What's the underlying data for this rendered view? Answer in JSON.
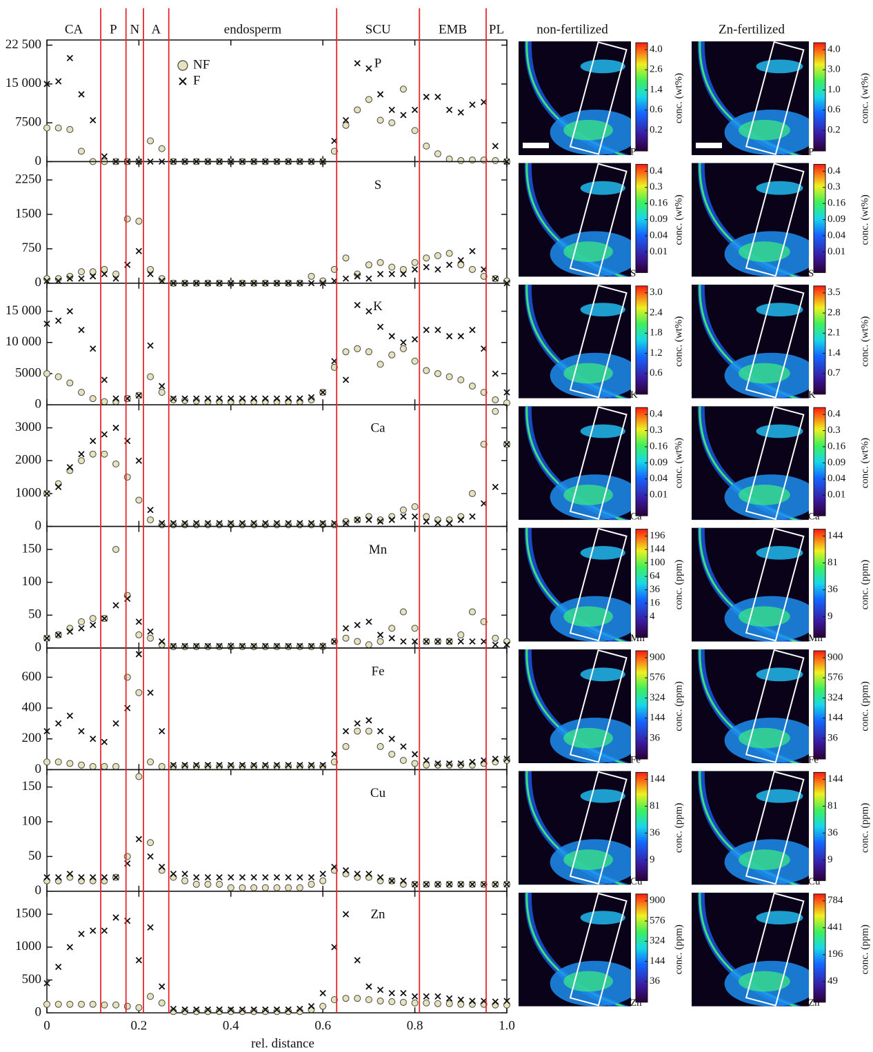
{
  "chart_data": {
    "type": "scatter",
    "xlabel": "rel. distance",
    "x": [
      0,
      0.025,
      0.05,
      0.075,
      0.1,
      0.125,
      0.15,
      0.175,
      0.2,
      0.225,
      0.25,
      0.275,
      0.3,
      0.325,
      0.35,
      0.375,
      0.4,
      0.425,
      0.45,
      0.475,
      0.5,
      0.525,
      0.55,
      0.575,
      0.6,
      0.625,
      0.65,
      0.675,
      0.7,
      0.725,
      0.75,
      0.775,
      0.8,
      0.825,
      0.85,
      0.875,
      0.9,
      0.925,
      0.95,
      0.975,
      1
    ],
    "xlim": [
      0,
      1
    ],
    "xticks": [
      0,
      0.2,
      0.4,
      0.6,
      0.8,
      {
        "value": 1,
        "label": "1.0"
      }
    ],
    "regions": [
      "CA",
      "P",
      "N",
      "A",
      "endosperm",
      "SCU",
      "EMB",
      "PL"
    ],
    "boundaries": [
      0.117,
      0.172,
      0.21,
      0.265,
      0.63,
      0.81,
      0.955
    ],
    "boundary_color": "#e8262a",
    "legend": [
      {
        "name": "NF",
        "color": "#e6e2bd",
        "marker": "circle"
      },
      {
        "name": "F",
        "color": "#111111",
        "marker": "cross"
      }
    ],
    "panels": [
      {
        "label": "P",
        "ylim": [
          0,
          23500
        ],
        "yticks": [
          0,
          7500,
          {
            "value": 15000,
            "label": "15 000"
          },
          {
            "value": 22500,
            "label": "22 500"
          }
        ],
        "series": [
          {
            "values": [
              6500,
              6500,
              6200,
              2000,
              0,
              0,
              0,
              0,
              0,
              4000,
              2500,
              0,
              0,
              0,
              0,
              0,
              0,
              0,
              0,
              0,
              0,
              0,
              0,
              0,
              0,
              2000,
              7000,
              10000,
              12000,
              8000,
              7500,
              14000,
              6000,
              3000,
              1500,
              500,
              200,
              300,
              300,
              200,
              0
            ]
          },
          {
            "values": [
              15000,
              15500,
              20000,
              13000,
              8000,
              1000,
              0,
              0,
              0,
              0,
              0,
              0,
              0,
              0,
              0,
              0,
              0,
              0,
              0,
              0,
              0,
              0,
              0,
              0,
              0,
              4000,
              8000,
              19000,
              18000,
              13000,
              10000,
              9000,
              10000,
              12500,
              12500,
              10000,
              9500,
              11000,
              11500,
              3000,
              0
            ]
          }
        ]
      },
      {
        "label": "S",
        "ylim": [
          0,
          2650
        ],
        "yticks": [
          0,
          750,
          1500,
          2250
        ],
        "series": [
          {
            "values": [
              100,
              100,
              150,
              250,
              250,
              300,
              200,
              1400,
              1350,
              300,
              100,
              0,
              0,
              0,
              0,
              0,
              0,
              0,
              0,
              0,
              0,
              0,
              0,
              150,
              50,
              300,
              550,
              200,
              400,
              450,
              350,
              300,
              450,
              550,
              600,
              650,
              400,
              300,
              150,
              100,
              50
            ]
          },
          {
            "values": [
              50,
              50,
              100,
              100,
              150,
              200,
              100,
              400,
              700,
              200,
              50,
              0,
              0,
              0,
              0,
              0,
              0,
              0,
              0,
              0,
              0,
              0,
              0,
              0,
              0,
              50,
              100,
              150,
              100,
              200,
              200,
              200,
              300,
              350,
              300,
              400,
              500,
              700,
              300,
              100,
              0
            ]
          }
        ]
      },
      {
        "label": "K",
        "ylim": [
          0,
          19500
        ],
        "yticks": [
          0,
          5000,
          {
            "value": 10000,
            "label": "10 000"
          },
          {
            "value": 15000,
            "label": "15 000"
          }
        ],
        "series": [
          {
            "values": [
              5000,
              4500,
              3500,
              2000,
              1000,
              500,
              500,
              1000,
              1500,
              4500,
              2000,
              800,
              700,
              600,
              500,
              500,
              500,
              500,
              500,
              500,
              500,
              500,
              500,
              800,
              2000,
              6000,
              8500,
              9000,
              8500,
              6500,
              8000,
              9000,
              7000,
              5500,
              5000,
              4500,
              4000,
              3000,
              2000,
              800,
              300
            ]
          },
          {
            "values": [
              13000,
              13500,
              15000,
              12000,
              9000,
              4000,
              1000,
              1000,
              1500,
              9500,
              3000,
              1000,
              1000,
              1000,
              1000,
              1000,
              1000,
              1000,
              1000,
              1000,
              1000,
              1000,
              1000,
              1200,
              2000,
              7000,
              4000,
              16000,
              15000,
              12500,
              11000,
              10000,
              10500,
              12000,
              12000,
              11000,
              11000,
              12000,
              9000,
              5000,
              2000
            ]
          }
        ]
      },
      {
        "label": "Ca",
        "ylim": [
          0,
          3700
        ],
        "yticks": [
          0,
          1000,
          2000,
          3000
        ],
        "series": [
          {
            "values": [
              1000,
              1300,
              1700,
              2000,
              2200,
              2200,
              1900,
              1500,
              800,
              200,
              50,
              50,
              50,
              50,
              50,
              50,
              50,
              50,
              50,
              50,
              50,
              50,
              50,
              50,
              50,
              50,
              150,
              200,
              300,
              200,
              300,
              500,
              600,
              300,
              200,
              200,
              300,
              1000,
              2500,
              3500,
              2500
            ]
          },
          {
            "values": [
              1000,
              1200,
              1800,
              2200,
              2600,
              2800,
              3000,
              2600,
              2000,
              500,
              100,
              100,
              100,
              100,
              100,
              100,
              100,
              100,
              100,
              100,
              100,
              100,
              100,
              100,
              100,
              100,
              100,
              200,
              200,
              150,
              200,
              300,
              300,
              150,
              100,
              100,
              200,
              300,
              700,
              1200,
              2500
            ]
          }
        ]
      },
      {
        "label": "Mn",
        "ylim": [
          0,
          185
        ],
        "yticks": [
          0,
          50,
          100,
          150
        ],
        "series": [
          {
            "values": [
              15,
              20,
              30,
              40,
              45,
              45,
              150,
              80,
              20,
              15,
              5,
              2,
              2,
              2,
              2,
              2,
              2,
              2,
              2,
              2,
              2,
              2,
              2,
              2,
              2,
              10,
              15,
              10,
              5,
              10,
              30,
              55,
              30,
              10,
              10,
              10,
              20,
              55,
              40,
              15,
              10
            ]
          },
          {
            "values": [
              15,
              20,
              25,
              30,
              35,
              45,
              65,
              75,
              40,
              25,
              10,
              3,
              3,
              3,
              3,
              3,
              3,
              3,
              3,
              3,
              3,
              3,
              3,
              3,
              3,
              10,
              30,
              35,
              40,
              20,
              15,
              10,
              10,
              10,
              10,
              10,
              10,
              10,
              10,
              5,
              5
            ]
          }
        ]
      },
      {
        "label": "Fe",
        "ylim": [
          0,
          790
        ],
        "yticks": [
          0,
          200,
          400,
          600
        ],
        "series": [
          {
            "values": [
              50,
              50,
              40,
              30,
              20,
              20,
              20,
              600,
              500,
              50,
              20,
              20,
              20,
              20,
              20,
              20,
              20,
              20,
              20,
              20,
              20,
              20,
              20,
              20,
              20,
              50,
              150,
              250,
              250,
              150,
              100,
              60,
              40,
              30,
              30,
              30,
              30,
              30,
              40,
              50,
              60
            ]
          },
          {
            "values": [
              250,
              300,
              350,
              250,
              200,
              180,
              300,
              400,
              750,
              500,
              250,
              30,
              30,
              30,
              30,
              30,
              30,
              30,
              30,
              30,
              30,
              30,
              30,
              30,
              30,
              100,
              250,
              300,
              320,
              250,
              200,
              150,
              100,
              60,
              40,
              40,
              40,
              50,
              60,
              70,
              70
            ]
          }
        ]
      },
      {
        "label": "Cu",
        "ylim": [
          0,
          175
        ],
        "yticks": [
          0,
          50,
          100,
          150
        ],
        "series": [
          {
            "values": [
              15,
              15,
              20,
              15,
              15,
              15,
              20,
              50,
              165,
              70,
              30,
              20,
              15,
              10,
              10,
              10,
              5,
              5,
              5,
              5,
              5,
              5,
              5,
              10,
              15,
              30,
              25,
              20,
              20,
              15,
              15,
              10,
              10,
              10,
              10,
              10,
              10,
              10,
              10,
              10,
              10
            ]
          },
          {
            "values": [
              20,
              20,
              25,
              20,
              20,
              20,
              20,
              40,
              75,
              50,
              35,
              25,
              25,
              20,
              20,
              20,
              20,
              20,
              20,
              20,
              20,
              20,
              20,
              20,
              25,
              35,
              30,
              25,
              25,
              20,
              15,
              15,
              10,
              10,
              10,
              10,
              10,
              10,
              10,
              10,
              10
            ]
          }
        ]
      },
      {
        "label": "Zn",
        "ylim": [
          0,
          1850
        ],
        "yticks": [
          0,
          500,
          1000,
          1500
        ],
        "series": [
          {
            "values": [
              130,
              130,
              130,
              130,
              130,
              120,
              120,
              100,
              80,
              250,
              150,
              20,
              20,
              20,
              20,
              20,
              20,
              20,
              20,
              20,
              20,
              20,
              20,
              50,
              100,
              200,
              220,
              220,
              200,
              180,
              170,
              160,
              150,
              150,
              140,
              140,
              130,
              130,
              130,
              120,
              120
            ]
          },
          {
            "values": [
              450,
              700,
              1000,
              1200,
              1250,
              1250,
              1450,
              1400,
              800,
              1300,
              400,
              60,
              50,
              50,
              50,
              50,
              50,
              50,
              50,
              50,
              50,
              50,
              60,
              100,
              300,
              1000,
              1500,
              800,
              400,
              350,
              300,
              300,
              250,
              250,
              250,
              220,
              200,
              180,
              180,
              170,
              180
            ]
          }
        ]
      }
    ]
  },
  "maps": {
    "columns": [
      "non-fertilized",
      "Zn-fertilized"
    ],
    "rows": [
      {
        "nf": {
          "unit": "conc. (wt%)",
          "ticks": [
            "4.0",
            "2.6",
            "1.4",
            "0.6",
            "0.2"
          ]
        },
        "zn": {
          "unit": "conc. (wt%)",
          "ticks": [
            "4.0",
            "3.0",
            "1.0",
            "0.6",
            "0.2"
          ]
        }
      },
      {
        "nf": {
          "unit": "conc. (wt%)",
          "ticks": [
            "0.4",
            "0.3",
            "0.16",
            "0.09",
            "0.04",
            "0.01"
          ]
        },
        "zn": {
          "unit": "conc. (wt%)",
          "ticks": [
            "0.4",
            "0.3",
            "0.16",
            "0.09",
            "0.04",
            "0.01"
          ]
        }
      },
      {
        "nf": {
          "unit": "conc. (wt%)",
          "ticks": [
            "3.0",
            "2.4",
            "1.8",
            "1.2",
            "0.6"
          ]
        },
        "zn": {
          "unit": "conc. (wt%)",
          "ticks": [
            "3.5",
            "2.8",
            "2.1",
            "1.4",
            "0.7"
          ]
        }
      },
      {
        "nf": {
          "unit": "conc. (wt%)",
          "ticks": [
            "0.4",
            "0.3",
            "0.16",
            "0.09",
            "0.04",
            "0.01"
          ]
        },
        "zn": {
          "unit": "conc. (wt%)",
          "ticks": [
            "0.4",
            "0.3",
            "0.16",
            "0.09",
            "0.04",
            "0.01"
          ]
        }
      },
      {
        "nf": {
          "unit": "conc. (ppm)",
          "ticks": [
            "196",
            "144",
            "100",
            "64",
            "36",
            "16",
            "4"
          ]
        },
        "zn": {
          "unit": "conc. (ppm)",
          "ticks": [
            "144",
            "81",
            "36",
            "9"
          ]
        }
      },
      {
        "nf": {
          "unit": "conc. (ppm)",
          "ticks": [
            "900",
            "576",
            "324",
            "144",
            "36"
          ]
        },
        "zn": {
          "unit": "conc. (ppm)",
          "ticks": [
            "900",
            "576",
            "324",
            "144",
            "36"
          ]
        }
      },
      {
        "nf": {
          "unit": "conc. (ppm)",
          "ticks": [
            "144",
            "81",
            "36",
            "9"
          ]
        },
        "zn": {
          "unit": "conc. (ppm)",
          "ticks": [
            "144",
            "81",
            "36",
            "9"
          ]
        }
      },
      {
        "nf": {
          "unit": "conc. (ppm)",
          "ticks": [
            "900",
            "576",
            "324",
            "144",
            "36"
          ]
        },
        "zn": {
          "unit": "conc. (ppm)",
          "ticks": [
            "784",
            "441",
            "196",
            "49"
          ]
        }
      }
    ]
  }
}
